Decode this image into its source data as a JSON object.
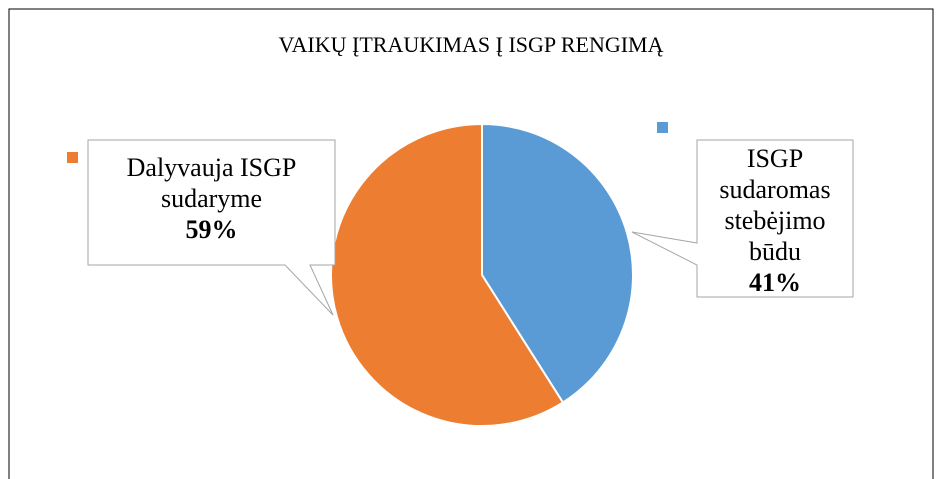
{
  "chart_data": {
    "type": "pie",
    "title": "VAIKŲ ĮTRAUKIMAS Į ISGP RENGIMĄ",
    "categories": [
      "ISGP sudaromas stebėjimo būdu",
      "Dalyvauja ISGP sudaryme"
    ],
    "values": [
      41,
      59
    ],
    "value_labels": [
      "41%",
      "59%"
    ],
    "colors": [
      "#5b9bd5",
      "#ed7d31"
    ]
  }
}
